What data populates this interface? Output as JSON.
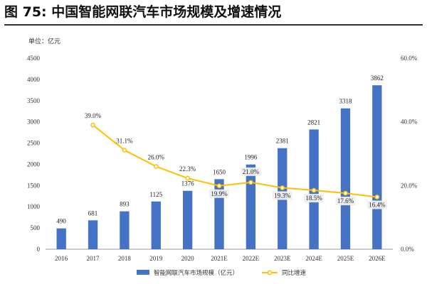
{
  "figure": {
    "title": "图  75:  中国智能网联汽车市场规模及增速情况",
    "unit_label": "单位：亿元"
  },
  "chart_data": {
    "type": "bar",
    "categories": [
      "2016",
      "2017",
      "2018",
      "2019",
      "2020",
      "2021E",
      "2022E",
      "2023E",
      "2024E",
      "2025E",
      "2026E"
    ],
    "series": [
      {
        "name": "智能网联汽车市场规模（亿元）",
        "type": "bar",
        "axis": "left",
        "color": "#4472C4",
        "values": [
          490,
          681,
          893,
          1125,
          1376,
          1650,
          1996,
          2381,
          2821,
          3318,
          3862
        ],
        "labels": [
          "490",
          "681",
          "893",
          "1125",
          "1376",
          "1650",
          "1996",
          "2381",
          "2821",
          "3318",
          "3862"
        ]
      },
      {
        "name": "同比增速",
        "type": "line",
        "axis": "right",
        "color": "#FFC000",
        "values": [
          null,
          39.0,
          31.1,
          26.0,
          22.3,
          19.9,
          21.0,
          19.3,
          18.5,
          17.6,
          16.4
        ],
        "labels": [
          "",
          "39.0%",
          "31.1%",
          "26.0%",
          "22.3%",
          "19.9%",
          "21.0%",
          "19.3%",
          "18.5%",
          "17.6%",
          "16.4%"
        ]
      }
    ],
    "ylim_left": [
      0,
      4500
    ],
    "ylim_right": [
      0,
      60
    ],
    "yticks_left": [
      "0",
      "500",
      "1000",
      "1500",
      "2000",
      "2500",
      "3000",
      "3500",
      "4000",
      "4500"
    ],
    "yticks_right": [
      "0.0%",
      "20.0%",
      "40.0%",
      "60.0%"
    ],
    "grid": false,
    "legend_position": "bottom"
  }
}
